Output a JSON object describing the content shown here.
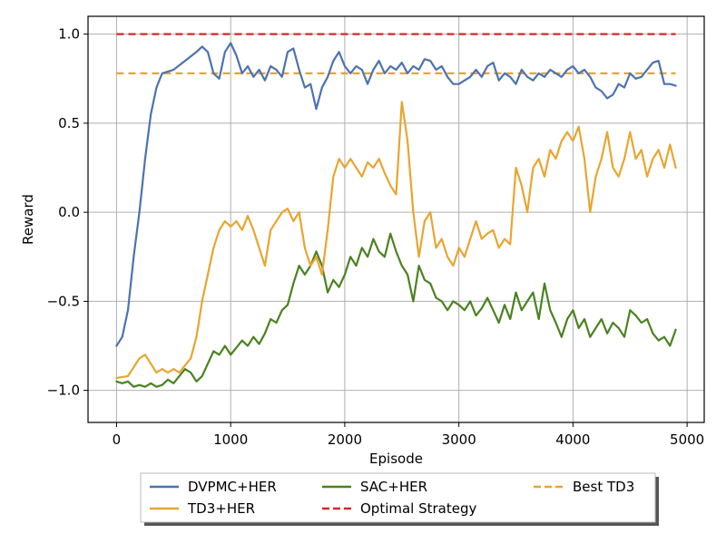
{
  "chart_data": {
    "type": "line",
    "title": "",
    "xlabel": "Episode",
    "ylabel": "Reward",
    "xlim": [
      -250,
      5150
    ],
    "ylim": [
      -1.18,
      1.1
    ],
    "xticks": [
      0,
      1000,
      2000,
      3000,
      4000,
      5000
    ],
    "xtick_labels": [
      "0",
      "1000",
      "2000",
      "3000",
      "4000",
      "5000"
    ],
    "yticks": [
      -1.0,
      -0.5,
      0.0,
      0.5,
      1.0
    ],
    "ytick_labels": [
      "−1.0",
      "−0.5",
      "0.0",
      "0.5",
      "1.0"
    ],
    "grid": true,
    "legend_placement": "below plot, 3 columns, with shadow",
    "series": [
      {
        "name": "DVPMC+HER",
        "color": "#4c72b0",
        "style": "solid",
        "x": [
          0,
          50,
          100,
          150,
          200,
          250,
          300,
          350,
          400,
          450,
          500,
          600,
          700,
          750,
          800,
          850,
          900,
          950,
          1000,
          1050,
          1100,
          1150,
          1200,
          1250,
          1300,
          1350,
          1400,
          1450,
          1500,
          1550,
          1600,
          1650,
          1700,
          1750,
          1800,
          1850,
          1900,
          1950,
          2000,
          2050,
          2100,
          2150,
          2200,
          2250,
          2300,
          2350,
          2400,
          2450,
          2500,
          2550,
          2600,
          2650,
          2700,
          2750,
          2800,
          2850,
          2900,
          2950,
          3000,
          3050,
          3100,
          3150,
          3200,
          3250,
          3300,
          3350,
          3400,
          3450,
          3500,
          3550,
          3600,
          3650,
          3700,
          3750,
          3800,
          3850,
          3900,
          3950,
          4000,
          4050,
          4100,
          4150,
          4200,
          4250,
          4300,
          4350,
          4400,
          4450,
          4500,
          4550,
          4600,
          4650,
          4700,
          4750,
          4800,
          4850,
          4900
        ],
        "y": [
          -0.75,
          -0.7,
          -0.55,
          -0.25,
          0.0,
          0.3,
          0.55,
          0.7,
          0.78,
          0.79,
          0.8,
          0.85,
          0.9,
          0.93,
          0.9,
          0.78,
          0.75,
          0.9,
          0.95,
          0.88,
          0.78,
          0.82,
          0.76,
          0.8,
          0.74,
          0.82,
          0.8,
          0.76,
          0.9,
          0.92,
          0.8,
          0.7,
          0.72,
          0.58,
          0.7,
          0.76,
          0.85,
          0.9,
          0.82,
          0.78,
          0.82,
          0.8,
          0.72,
          0.8,
          0.85,
          0.78,
          0.82,
          0.8,
          0.84,
          0.78,
          0.82,
          0.8,
          0.86,
          0.85,
          0.8,
          0.82,
          0.76,
          0.72,
          0.72,
          0.74,
          0.76,
          0.8,
          0.76,
          0.82,
          0.84,
          0.74,
          0.78,
          0.76,
          0.72,
          0.8,
          0.76,
          0.74,
          0.78,
          0.76,
          0.8,
          0.78,
          0.76,
          0.8,
          0.82,
          0.78,
          0.8,
          0.76,
          0.7,
          0.68,
          0.64,
          0.66,
          0.72,
          0.7,
          0.78,
          0.75,
          0.76,
          0.8,
          0.84,
          0.85,
          0.72,
          0.72,
          0.71
        ]
      },
      {
        "name": "TD3+HER",
        "color": "#e8a530",
        "style": "solid",
        "x": [
          0,
          100,
          200,
          250,
          300,
          350,
          400,
          450,
          500,
          550,
          600,
          650,
          700,
          750,
          800,
          850,
          900,
          950,
          1000,
          1050,
          1100,
          1150,
          1200,
          1250,
          1300,
          1350,
          1400,
          1450,
          1500,
          1550,
          1600,
          1650,
          1700,
          1750,
          1800,
          1850,
          1900,
          1950,
          2000,
          2050,
          2100,
          2150,
          2200,
          2250,
          2300,
          2350,
          2400,
          2450,
          2500,
          2550,
          2600,
          2650,
          2700,
          2750,
          2800,
          2850,
          2900,
          2950,
          3000,
          3050,
          3100,
          3150,
          3200,
          3250,
          3300,
          3350,
          3400,
          3450,
          3500,
          3550,
          3600,
          3650,
          3700,
          3750,
          3800,
          3850,
          3900,
          3950,
          4000,
          4050,
          4100,
          4150,
          4200,
          4250,
          4300,
          4350,
          4400,
          4450,
          4500,
          4550,
          4600,
          4650,
          4700,
          4750,
          4800,
          4850,
          4900
        ],
        "y": [
          -0.93,
          -0.92,
          -0.82,
          -0.8,
          -0.85,
          -0.9,
          -0.88,
          -0.9,
          -0.88,
          -0.9,
          -0.86,
          -0.82,
          -0.7,
          -0.5,
          -0.35,
          -0.2,
          -0.1,
          -0.05,
          -0.08,
          -0.05,
          -0.1,
          -0.02,
          -0.1,
          -0.2,
          -0.3,
          -0.1,
          -0.05,
          0.0,
          0.02,
          -0.05,
          0.0,
          -0.2,
          -0.3,
          -0.25,
          -0.35,
          -0.1,
          0.2,
          0.3,
          0.25,
          0.3,
          0.25,
          0.2,
          0.28,
          0.25,
          0.3,
          0.22,
          0.15,
          0.1,
          0.62,
          0.4,
          0.0,
          -0.25,
          -0.05,
          0.0,
          -0.2,
          -0.15,
          -0.25,
          -0.3,
          -0.2,
          -0.25,
          -0.15,
          -0.05,
          -0.15,
          -0.12,
          -0.1,
          -0.2,
          -0.15,
          -0.18,
          0.25,
          0.15,
          0.0,
          0.25,
          0.3,
          0.2,
          0.35,
          0.3,
          0.4,
          0.45,
          0.4,
          0.48,
          0.3,
          0.0,
          0.2,
          0.3,
          0.45,
          0.25,
          0.2,
          0.3,
          0.45,
          0.3,
          0.35,
          0.2,
          0.3,
          0.35,
          0.25,
          0.38,
          0.25
        ]
      },
      {
        "name": "SAC+HER",
        "color": "#4a8221",
        "style": "solid",
        "x": [
          0,
          50,
          100,
          150,
          200,
          250,
          300,
          350,
          400,
          450,
          500,
          550,
          600,
          650,
          700,
          750,
          800,
          850,
          900,
          950,
          1000,
          1050,
          1100,
          1150,
          1200,
          1250,
          1300,
          1350,
          1400,
          1450,
          1500,
          1550,
          1600,
          1650,
          1700,
          1750,
          1800,
          1850,
          1900,
          1950,
          2000,
          2050,
          2100,
          2150,
          2200,
          2250,
          2300,
          2350,
          2400,
          2450,
          2500,
          2550,
          2600,
          2650,
          2700,
          2750,
          2800,
          2850,
          2900,
          2950,
          3000,
          3050,
          3100,
          3150,
          3200,
          3250,
          3300,
          3350,
          3400,
          3450,
          3500,
          3550,
          3600,
          3650,
          3700,
          3750,
          3800,
          3850,
          3900,
          3950,
          4000,
          4050,
          4100,
          4150,
          4200,
          4250,
          4300,
          4350,
          4400,
          4450,
          4500,
          4550,
          4600,
          4650,
          4700,
          4750,
          4800,
          4850,
          4900
        ],
        "y": [
          -0.95,
          -0.96,
          -0.95,
          -0.98,
          -0.97,
          -0.98,
          -0.96,
          -0.98,
          -0.97,
          -0.94,
          -0.96,
          -0.92,
          -0.88,
          -0.9,
          -0.95,
          -0.92,
          -0.85,
          -0.78,
          -0.8,
          -0.75,
          -0.8,
          -0.76,
          -0.72,
          -0.75,
          -0.7,
          -0.74,
          -0.68,
          -0.6,
          -0.62,
          -0.55,
          -0.52,
          -0.4,
          -0.3,
          -0.35,
          -0.3,
          -0.22,
          -0.3,
          -0.45,
          -0.38,
          -0.42,
          -0.35,
          -0.25,
          -0.3,
          -0.2,
          -0.25,
          -0.15,
          -0.22,
          -0.25,
          -0.12,
          -0.22,
          -0.3,
          -0.35,
          -0.5,
          -0.3,
          -0.38,
          -0.4,
          -0.48,
          -0.5,
          -0.55,
          -0.5,
          -0.52,
          -0.55,
          -0.5,
          -0.58,
          -0.54,
          -0.48,
          -0.55,
          -0.62,
          -0.52,
          -0.6,
          -0.45,
          -0.55,
          -0.5,
          -0.45,
          -0.6,
          -0.4,
          -0.55,
          -0.62,
          -0.7,
          -0.6,
          -0.55,
          -0.65,
          -0.6,
          -0.7,
          -0.65,
          -0.6,
          -0.68,
          -0.62,
          -0.65,
          -0.7,
          -0.55,
          -0.58,
          -0.62,
          -0.6,
          -0.68,
          -0.72,
          -0.7,
          -0.75,
          -0.66
        ]
      }
    ],
    "reference_lines": [
      {
        "name": "Optimal Strategy",
        "color": "#d62728",
        "style": "dashed",
        "y": 1.0,
        "x_range": [
          0,
          4900
        ]
      },
      {
        "name": "Best TD3",
        "color": "#e8a530",
        "style": "dashed",
        "y": 0.78,
        "x_range": [
          0,
          4900
        ]
      }
    ],
    "legend": [
      {
        "name": "DVPMC+HER",
        "color": "#4c72b0",
        "style": "solid"
      },
      {
        "name": "SAC+HER",
        "color": "#4a8221",
        "style": "solid"
      },
      {
        "name": "Best TD3",
        "color": "#e8a530",
        "style": "dashed"
      },
      {
        "name": "TD3+HER",
        "color": "#e8a530",
        "style": "solid"
      },
      {
        "name": "Optimal Strategy",
        "color": "#d62728",
        "style": "dashed"
      }
    ]
  }
}
